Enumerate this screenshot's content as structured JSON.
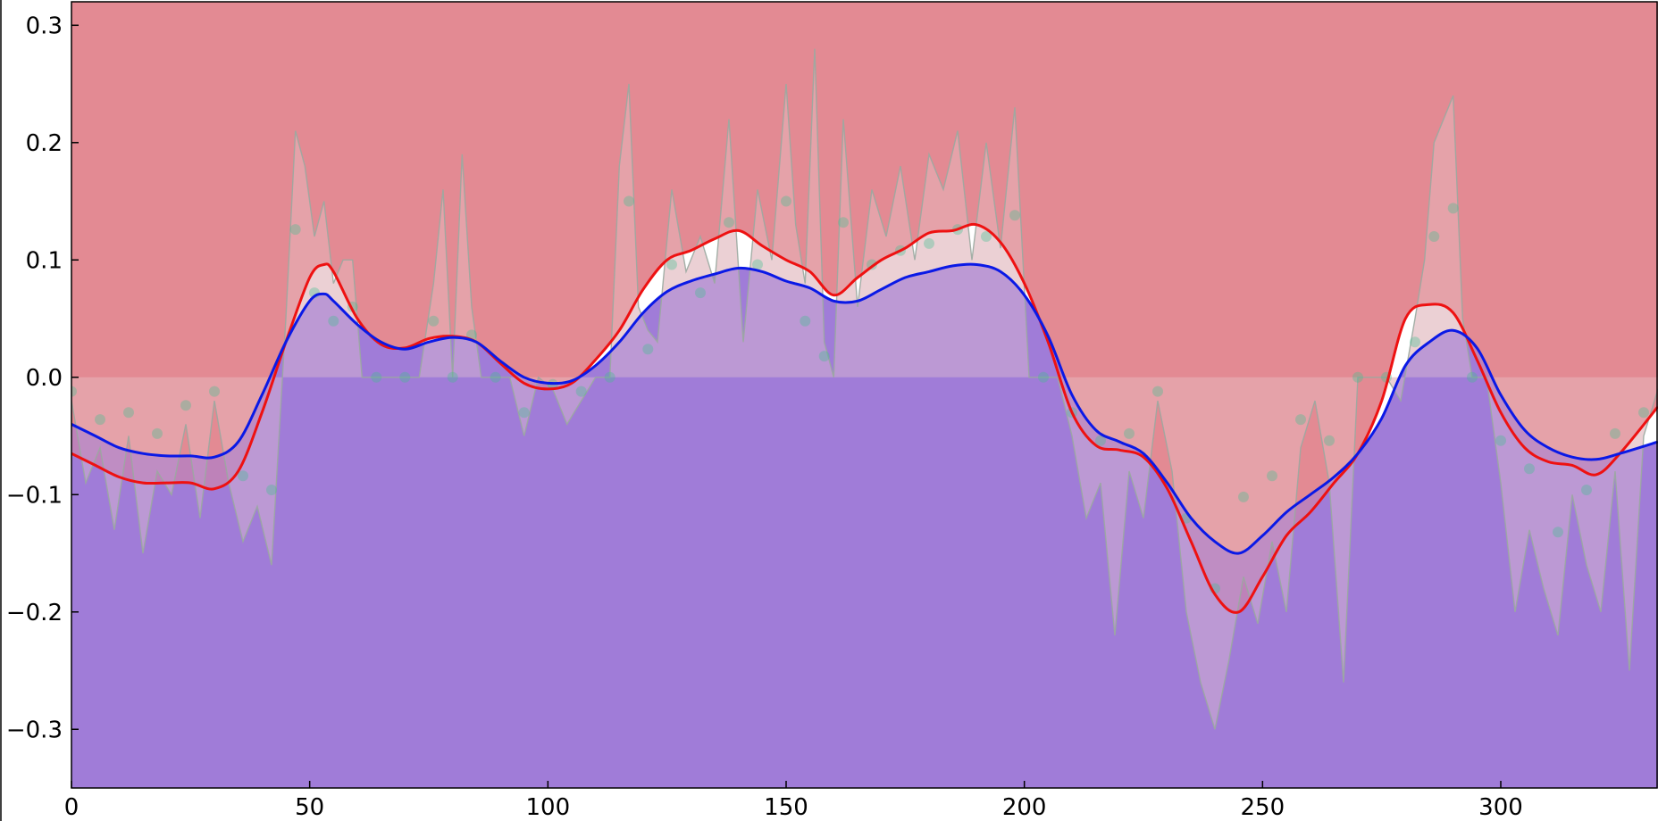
{
  "chart_data": {
    "type": "area",
    "title": "",
    "xlabel": "",
    "ylabel": "",
    "xlim": [
      0,
      333
    ],
    "ylim": [
      -0.35,
      0.32
    ],
    "x_ticks": [
      0,
      50,
      100,
      150,
      200,
      250,
      300
    ],
    "x_tick_labels": [
      "0",
      "50",
      "100",
      "150",
      "200",
      "250",
      "300"
    ],
    "y_ticks": [
      0.3,
      0.2,
      0.1,
      0.0,
      -0.1,
      -0.2,
      -0.3
    ],
    "y_tick_labels": [
      "0.3",
      "0.2",
      "0.1",
      "0.0",
      "−0.1",
      "−0.2",
      "−0.3"
    ],
    "grid": false,
    "colors": {
      "upper_fill": "#e38a93",
      "lower_fill": "#a07cd8",
      "band_pink": "#e8c8cc",
      "band_lavender": "#c9b7e6",
      "raw_line": "#9aa9a0",
      "markers": "#3fbf8f",
      "red_line": "#ee1111",
      "blue_line": "#0a19e6",
      "gap_fill": "#ffffff"
    },
    "series": [
      {
        "role": "red-smooth",
        "x": [
          0,
          5,
          10,
          15,
          20,
          25,
          30,
          35,
          40,
          45,
          50,
          53,
          55,
          60,
          65,
          70,
          75,
          80,
          85,
          90,
          95,
          100,
          105,
          110,
          115,
          120,
          125,
          130,
          135,
          140,
          145,
          150,
          155,
          160,
          165,
          170,
          175,
          180,
          185,
          190,
          195,
          200,
          205,
          210,
          215,
          220,
          225,
          230,
          235,
          240,
          245,
          250,
          255,
          260,
          265,
          270,
          275,
          280,
          285,
          290,
          295,
          300,
          305,
          310,
          315,
          320,
          325,
          333
        ],
        "y": [
          -0.065,
          -0.075,
          -0.085,
          -0.09,
          -0.09,
          -0.09,
          -0.095,
          -0.08,
          -0.03,
          0.03,
          0.085,
          0.096,
          0.09,
          0.05,
          0.028,
          0.025,
          0.033,
          0.035,
          0.03,
          0.012,
          -0.005,
          -0.01,
          -0.005,
          0.015,
          0.04,
          0.075,
          0.1,
          0.108,
          0.118,
          0.125,
          0.112,
          0.1,
          0.09,
          0.07,
          0.085,
          0.1,
          0.11,
          0.123,
          0.125,
          0.13,
          0.115,
          0.08,
          0.03,
          -0.03,
          -0.058,
          -0.062,
          -0.068,
          -0.095,
          -0.14,
          -0.185,
          -0.2,
          -0.17,
          -0.135,
          -0.115,
          -0.09,
          -0.065,
          -0.02,
          0.05,
          0.062,
          0.055,
          0.015,
          -0.03,
          -0.06,
          -0.072,
          -0.075,
          -0.083,
          -0.065,
          -0.025
        ]
      },
      {
        "role": "blue-smooth",
        "x": [
          0,
          5,
          10,
          15,
          20,
          25,
          30,
          35,
          40,
          45,
          50,
          53,
          55,
          60,
          65,
          70,
          75,
          80,
          85,
          90,
          95,
          100,
          105,
          110,
          115,
          120,
          125,
          130,
          135,
          140,
          145,
          150,
          155,
          160,
          165,
          170,
          175,
          180,
          185,
          190,
          195,
          200,
          205,
          210,
          215,
          220,
          225,
          230,
          235,
          240,
          245,
          250,
          255,
          260,
          265,
          270,
          275,
          280,
          285,
          290,
          295,
          300,
          305,
          310,
          315,
          320,
          325,
          333
        ],
        "y": [
          -0.04,
          -0.05,
          -0.06,
          -0.065,
          -0.067,
          -0.067,
          -0.068,
          -0.055,
          -0.015,
          0.03,
          0.065,
          0.071,
          0.065,
          0.045,
          0.03,
          0.024,
          0.03,
          0.034,
          0.03,
          0.014,
          0.0,
          -0.005,
          -0.003,
          0.01,
          0.03,
          0.055,
          0.073,
          0.082,
          0.088,
          0.093,
          0.09,
          0.082,
          0.076,
          0.065,
          0.065,
          0.075,
          0.085,
          0.09,
          0.095,
          0.096,
          0.09,
          0.07,
          0.035,
          -0.015,
          -0.045,
          -0.055,
          -0.065,
          -0.09,
          -0.12,
          -0.14,
          -0.15,
          -0.135,
          -0.115,
          -0.1,
          -0.085,
          -0.065,
          -0.035,
          0.01,
          0.03,
          0.04,
          0.025,
          -0.015,
          -0.045,
          -0.06,
          -0.068,
          -0.07,
          -0.065,
          -0.055
        ]
      },
      {
        "role": "raw-envelope",
        "x": [
          0,
          3,
          6,
          9,
          12,
          15,
          18,
          21,
          24,
          27,
          30,
          33,
          36,
          39,
          42,
          45,
          47,
          49,
          51,
          53,
          55,
          57,
          59,
          61,
          64,
          67,
          70,
          73,
          76,
          78,
          80,
          82,
          84,
          86,
          89,
          92,
          95,
          98,
          101,
          104,
          107,
          110,
          113,
          115,
          117,
          119,
          121,
          123,
          126,
          129,
          132,
          135,
          138,
          141,
          144,
          147,
          150,
          152,
          154,
          156,
          158,
          160,
          162,
          165,
          168,
          171,
          174,
          177,
          180,
          183,
          186,
          189,
          192,
          195,
          198,
          201,
          204,
          207,
          210,
          213,
          216,
          219,
          222,
          225,
          228,
          231,
          234,
          237,
          240,
          243,
          246,
          249,
          252,
          255,
          258,
          261,
          264,
          267,
          270,
          273,
          276,
          279,
          282,
          284,
          286,
          288,
          290,
          292,
          294,
          297,
          300,
          303,
          306,
          309,
          312,
          315,
          318,
          321,
          324,
          327,
          330,
          333
        ],
        "y": [
          -0.02,
          -0.09,
          -0.06,
          -0.13,
          -0.05,
          -0.15,
          -0.08,
          -0.1,
          -0.04,
          -0.12,
          -0.02,
          -0.09,
          -0.14,
          -0.11,
          -0.16,
          0.05,
          0.21,
          0.18,
          0.12,
          0.15,
          0.08,
          0.1,
          0.1,
          0.0,
          0.0,
          0.0,
          0.0,
          0.0,
          0.08,
          0.16,
          0.0,
          0.19,
          0.06,
          0.0,
          0.0,
          0.0,
          -0.05,
          0.0,
          -0.01,
          -0.04,
          -0.02,
          0.0,
          0.0,
          0.18,
          0.25,
          0.06,
          0.04,
          0.03,
          0.16,
          0.09,
          0.12,
          0.08,
          0.22,
          0.03,
          0.16,
          0.1,
          0.25,
          0.13,
          0.08,
          0.28,
          0.03,
          0.0,
          0.22,
          0.06,
          0.16,
          0.12,
          0.18,
          0.1,
          0.19,
          0.16,
          0.21,
          0.1,
          0.2,
          0.11,
          0.23,
          0.0,
          0.0,
          0.0,
          -0.05,
          -0.12,
          -0.09,
          -0.22,
          -0.08,
          -0.12,
          -0.02,
          -0.08,
          -0.2,
          -0.26,
          -0.3,
          -0.24,
          -0.17,
          -0.21,
          -0.14,
          -0.2,
          -0.06,
          -0.02,
          -0.09,
          -0.26,
          0.0,
          0.0,
          0.0,
          -0.02,
          0.05,
          0.1,
          0.2,
          0.22,
          0.24,
          0.05,
          0.0,
          0.0,
          -0.09,
          -0.2,
          -0.13,
          -0.18,
          -0.22,
          -0.1,
          -0.16,
          -0.2,
          -0.08,
          -0.25,
          -0.05,
          -0.01
        ]
      }
    ]
  }
}
